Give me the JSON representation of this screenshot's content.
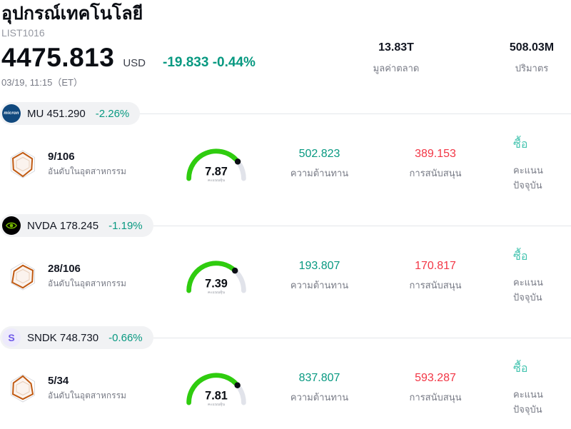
{
  "header": {
    "title": "อุปกรณ์เทคโนโลยี",
    "subtitle": "LIST1016",
    "price": "4475.813",
    "currency": "USD",
    "change": "-19.833 -0.44%",
    "datetime": "03/19, 11:15（ET）",
    "market_cap": {
      "value": "13.83T",
      "label": "มูลค่าตลาด"
    },
    "volume": {
      "value": "508.03M",
      "label": "ปริมาตร"
    }
  },
  "column_labels": {
    "rank": "อันดับในอุตสาหกรรม",
    "score": "คะแนนหุ้น",
    "resistance": "ความต้านทาน",
    "support": "การสนับสนุน",
    "rating": "คะแนนปัจจุบัน"
  },
  "stocks": [
    {
      "ticker": "MU",
      "price": "451.290",
      "change": "-2.26%",
      "rank": "9/106",
      "score": "7.87",
      "resistance": "502.823",
      "support": "389.153",
      "rating": "ซื้อ"
    },
    {
      "ticker": "NVDA",
      "price": "178.245",
      "change": "-1.19%",
      "rank": "28/106",
      "score": "7.39",
      "resistance": "193.807",
      "support": "170.817",
      "rating": "ซื้อ"
    },
    {
      "ticker": "SNDK",
      "price": "748.730",
      "change": "-0.66%",
      "rank": "5/34",
      "score": "7.81",
      "resistance": "837.807",
      "support": "593.287",
      "rating": "ซื้อ"
    }
  ],
  "logos": {
    "mu_text": "micron",
    "sndk_text": "S"
  },
  "colors": {
    "accent_teal": "#089981",
    "negative_red": "#f23645",
    "buy_teal": "#45c4b0",
    "gauge_green": "#2fcc0f",
    "gauge_track": "#e1e3ea",
    "radar_orange": "#c05a12"
  }
}
